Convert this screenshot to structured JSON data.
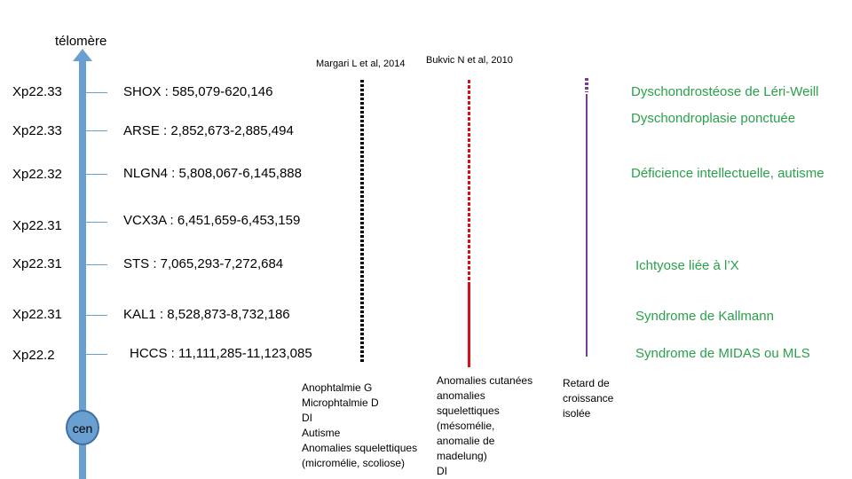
{
  "telomere_label": "télomère",
  "centromere_label": "cen",
  "sources": {
    "margari": "Margari L et al, 2014",
    "bukvic": "Bukvic N et al, 2010"
  },
  "rows": [
    {
      "band": "Xp22.33",
      "gene": "SHOX : 585,079-620,146",
      "disease": "Dyschondrostéose de Léri-Weill"
    },
    {
      "band": "Xp22.33",
      "gene": "ARSE : 2,852,673-2,885,494",
      "disease": "Dyschondroplasie ponctuée"
    },
    {
      "band": "Xp22.32",
      "gene": "NLGN4 : 5,808,067-6,145,888",
      "disease": "Déficience intellectuelle, autisme"
    },
    {
      "band": "Xp22.31",
      "gene": "VCX3A : 6,451,659-6,453,159",
      "disease": ""
    },
    {
      "band": "Xp22.31",
      "gene": "STS : 7,065,293-7,272,684",
      "disease": "Ichtyose liée à l’X"
    },
    {
      "band": "Xp22.31",
      "gene": "KAL1 : 8,528,873-8,732,186",
      "disease": "Syndrome de Kallmann"
    },
    {
      "band": "Xp22.2",
      "gene": "HCCS : 11,111,285-11,123,085",
      "disease": "Syndrome de MIDAS ou MLS"
    }
  ],
  "phenotypes": {
    "margari": "Anophtalmie G\nMicrophtalmie D\nDI\nAutisme\nAnomalies squelettiques\n(micromélie, scoliose)",
    "bukvic": "Anomalies cutanées\nanomalies\nsquelettiques\n(mésomélie,\nanomalie de\nmadelung)\nDI",
    "patient": "Retard de\ncroissance\nisolée"
  },
  "colors": {
    "axis": "#6a9fd2",
    "disease_text": "#2aa14a",
    "margari_line": "#000000",
    "bukvic_line": "#d7111a",
    "patient_line": "#7a3a9a"
  }
}
